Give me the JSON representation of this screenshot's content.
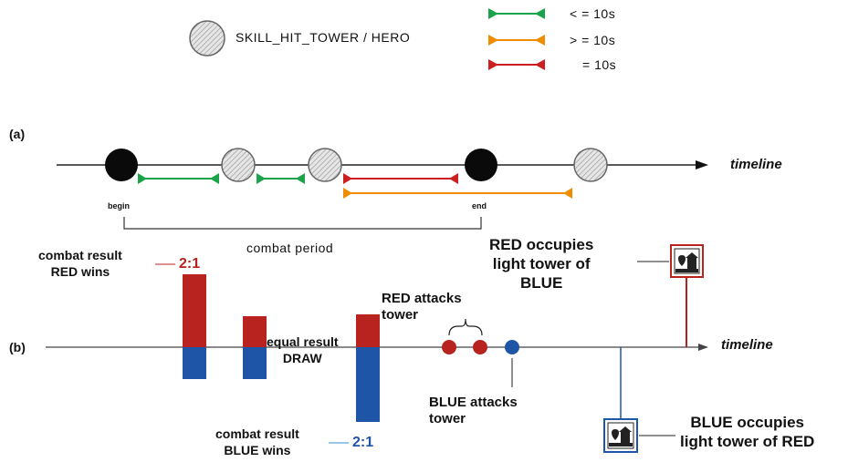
{
  "legend": {
    "skill_label": "SKILL_HIT_TOWER / HERO",
    "intervals": [
      {
        "label": "< = 10s",
        "color": "#1aa34a"
      },
      {
        "label": "> = 10s",
        "color": "#f08c00"
      },
      {
        "label": "= 10s",
        "color": "#cc1f1f"
      }
    ]
  },
  "panel_a": {
    "tag": "(a)",
    "axis_label": "timeline",
    "begin": "begin",
    "end": "end",
    "period": "combat period"
  },
  "panel_b": {
    "tag": "(b)",
    "axis_label": "timeline",
    "red_wins_label": "combat result\nRED wins",
    "red_wins_ratio": "2:1",
    "draw_label": "equal result\nDRAW",
    "red_attacks": "RED attacks\ntower",
    "blue_attacks": "BLUE attacks\ntower",
    "blue_wins_label": "combat result\nBLUE wins",
    "blue_wins_ratio": "2:1",
    "red_occupies": "RED occupies\nlight tower of\nBLUE",
    "blue_occupies": "BLUE occupies\nlight tower of RED"
  },
  "colors": {
    "red": "#b8231f",
    "blue": "#1f55a6",
    "green": "#1aa34a",
    "orange": "#f08c00"
  },
  "icons": [
    "hatched-circle-icon",
    "black-circle-icon",
    "interval-arrow-icon",
    "light-tower-icon"
  ]
}
